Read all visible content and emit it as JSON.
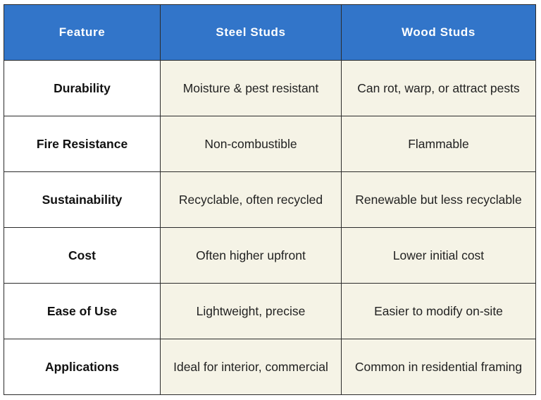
{
  "table": {
    "headers": [
      "Feature",
      "Steel Studs",
      "Wood Studs"
    ],
    "rows": [
      [
        "Durability",
        "Moisture & pest resistant",
        "Can rot, warp, or attract pests"
      ],
      [
        "Fire Resistance",
        "Non-combustible",
        "Flammable"
      ],
      [
        "Sustainability",
        "Recyclable, often recycled",
        "Renewable but less recyclable"
      ],
      [
        "Cost",
        "Often higher upfront",
        "Lower initial cost"
      ],
      [
        "Ease of Use",
        "Lightweight, precise",
        "Easier to modify on-site"
      ],
      [
        "Applications",
        "Ideal for interior, commercial",
        "Common in residential framing"
      ]
    ]
  },
  "colors": {
    "header_bg": "#3275c9",
    "header_text": "#ffffff",
    "value_bg": "#f5f3e6",
    "feature_bg": "#ffffff",
    "border": "#2b2b2b"
  }
}
